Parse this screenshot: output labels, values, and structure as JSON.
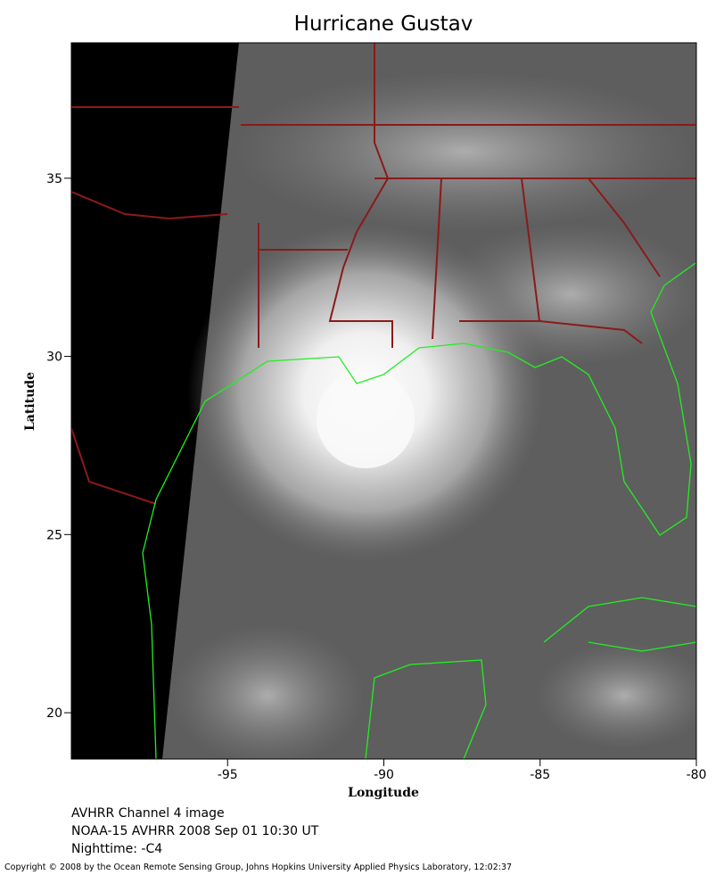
{
  "title": "Hurricane Gustav",
  "xaxis": {
    "label": "Longitude",
    "lim": [
      -100,
      -80
    ],
    "ticks": [
      -95,
      -90,
      -85,
      -80
    ]
  },
  "yaxis": {
    "label": "Latitude",
    "lim": [
      18.7,
      38.8
    ],
    "ticks": [
      20,
      25,
      30,
      35
    ]
  },
  "caption": [
    "AVHRR Channel 4 image",
    "NOAA-15 AVHRR 2008 Sep 01 10:30 UT",
    "Nighttime: -C4"
  ],
  "copyright": "Copyright © 2008 by the Ocean Remote Sensing Group, Johns Hopkins University Applied Physics Laboratory, 12:02:37"
}
